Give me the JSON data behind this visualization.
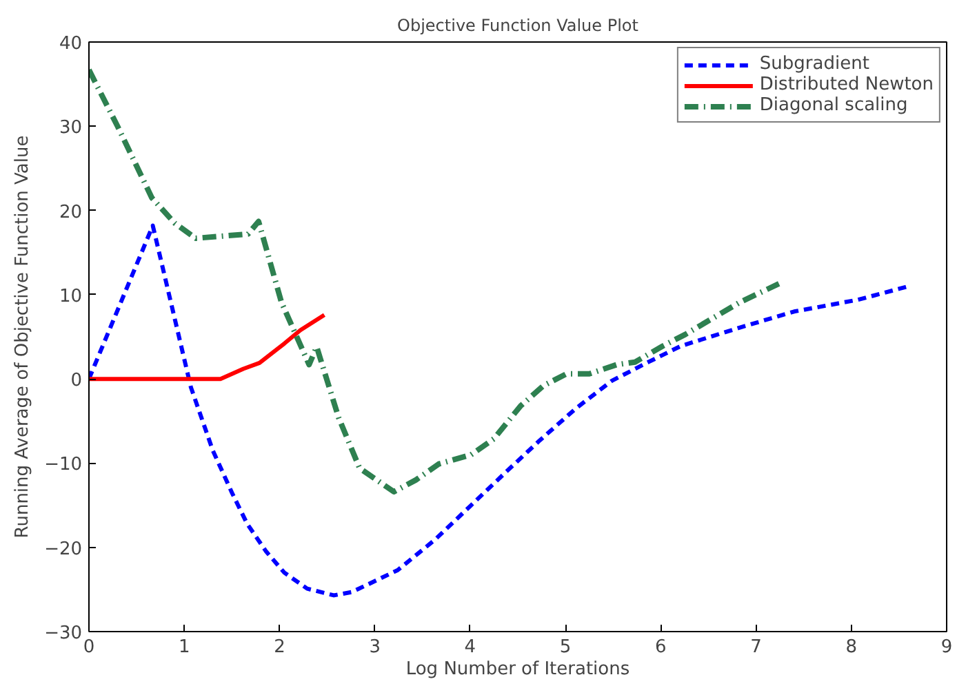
{
  "chart_data": {
    "type": "line",
    "title": "Objective Function Value Plot",
    "xlabel": "Log Number of Iterations",
    "ylabel": "Running Average of Objective Function Value",
    "xlim": [
      0,
      9
    ],
    "ylim": [
      -30,
      40
    ],
    "xticks": [
      0,
      1,
      2,
      3,
      4,
      5,
      6,
      7,
      8,
      9
    ],
    "yticks": [
      -30,
      -20,
      -10,
      0,
      10,
      20,
      30,
      40
    ],
    "grid": false,
    "legend": "top right",
    "series": [
      {
        "name": "Subgradient",
        "color": "#0000ff",
        "line_style": "dashed",
        "x": [
          0,
          0.67,
          1.07,
          1.3,
          1.5,
          1.66,
          1.86,
          2.05,
          2.29,
          2.57,
          2.76,
          3.24,
          3.63,
          4.01,
          4.39,
          4.73,
          5.11,
          5.49,
          5.87,
          6.21,
          6.83,
          7.4,
          8.07,
          8.6
        ],
        "values": [
          0,
          18.2,
          -1.0,
          -8.5,
          -13.5,
          -17.2,
          -20.5,
          -23,
          -24.9,
          -25.7,
          -25.3,
          -22.7,
          -19.1,
          -15,
          -10.9,
          -7.3,
          -3.5,
          -0.2,
          2.0,
          3.9,
          6.1,
          8.0,
          9.4,
          11.0
        ]
      },
      {
        "name": "Distributed Newton",
        "color": "#ff0000",
        "line_style": "solid",
        "x": [
          0,
          1.38,
          1.62,
          1.79,
          2.05,
          2.22,
          2.47
        ],
        "values": [
          0,
          0,
          1.2,
          1.9,
          4.2,
          5.8,
          7.6
        ]
      },
      {
        "name": "Diagonal scaling",
        "color": "#2e8050",
        "line_style": "dashdot",
        "x": [
          0,
          0.3,
          0.66,
          0.9,
          1.12,
          1.67,
          1.78,
          2.02,
          2.31,
          2.39,
          2.62,
          2.84,
          3.2,
          3.43,
          3.67,
          4.01,
          4.25,
          4.53,
          4.77,
          5.01,
          5.25,
          5.54,
          5.73,
          6.02,
          6.26,
          6.83,
          7.24
        ],
        "values": [
          36.7,
          30,
          21.5,
          18.5,
          16.7,
          17.2,
          18.7,
          9.1,
          1.7,
          3.8,
          -4.6,
          -10.6,
          -13.4,
          -12,
          -10.1,
          -9,
          -7.1,
          -3.2,
          -0.8,
          0.6,
          0.6,
          1.7,
          2.0,
          3.9,
          5.3,
          9.1,
          11.3
        ]
      }
    ]
  }
}
